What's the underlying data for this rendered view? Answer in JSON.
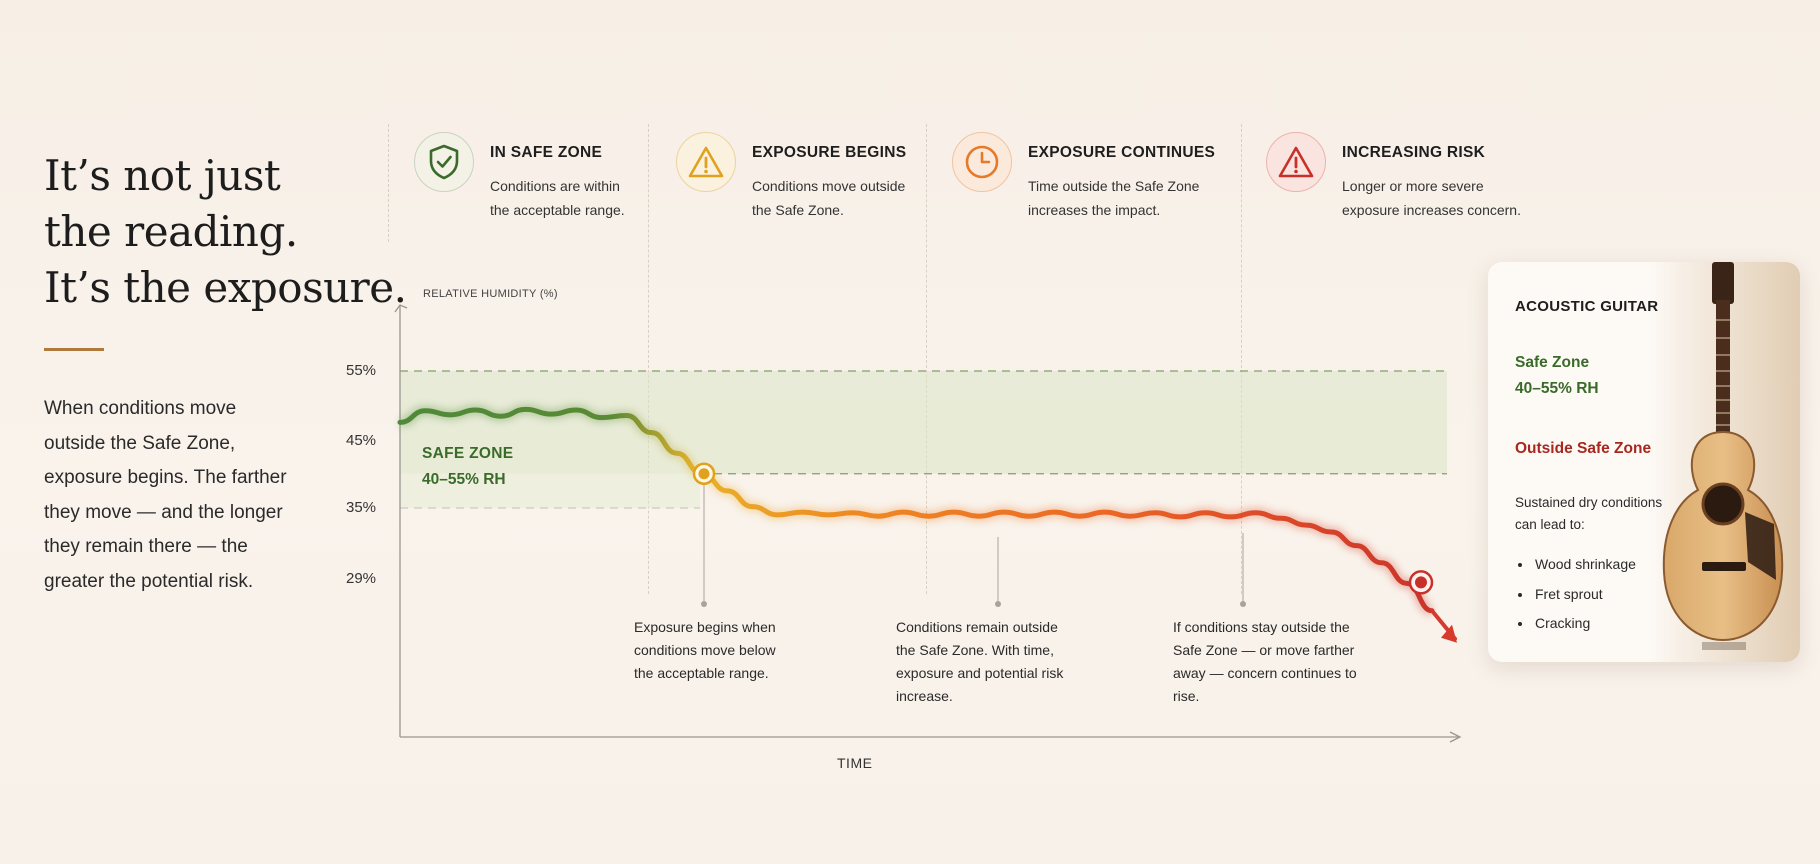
{
  "headline": [
    "It’s not just",
    "the reading.",
    "It’s the exposure."
  ],
  "intro": "When conditions move outside the Safe Zone, exposure begins. The farther they move — and the longer they remain there — the greater the potential risk.",
  "stages": [
    {
      "icon": "shield-check-icon",
      "title": "IN SAFE ZONE",
      "desc": "Conditions are within the acceptable range.",
      "color": "#3a6b2a"
    },
    {
      "icon": "warning-triangle-icon",
      "title": "EXPOSURE BEGINS",
      "desc": "Conditions move outside the Safe Zone.",
      "color": "#e0a21e"
    },
    {
      "icon": "clock-icon",
      "title": "EXPOSURE CONTINUES",
      "desc": "Time outside the Safe Zone increases the impact.",
      "color": "#e6792a"
    },
    {
      "icon": "alert-triangle-icon",
      "title": "INCREASING RISK",
      "desc": "Longer or more severe exposure increases concern.",
      "color": "#c8302a"
    }
  ],
  "chart_data": {
    "type": "line",
    "ylabel": "RELATIVE HUMIDITY (%)",
    "xlabel": "TIME",
    "y_ticks": [
      "55%",
      "45%",
      "35%",
      "29%"
    ],
    "safe_zone": {
      "label": "SAFE ZONE",
      "range_label": "40–55% RH",
      "min": 40,
      "max": 55
    },
    "series": [
      {
        "values_rh": [
          47.5,
          49.2,
          48.6,
          49.3,
          48.4,
          49.4,
          48.7,
          49.3,
          48.2,
          48.5,
          46.0,
          43.0,
          40.0,
          37.5,
          35.2,
          34.0,
          34.4,
          34.0,
          34.3,
          33.8,
          34.4,
          33.8,
          34.4,
          33.8,
          34.4,
          33.8,
          34.4,
          33.8,
          34.4,
          33.8,
          34.3,
          33.7,
          34.3,
          33.7,
          34.3,
          33.5,
          32.5,
          31.5,
          29.5,
          27.0,
          24.0,
          20.0
        ]
      }
    ],
    "markers": [
      {
        "label": "exposure-begins-point",
        "rh": 40.0
      },
      {
        "label": "increasing-risk-point",
        "rh": 24.0
      }
    ],
    "annotations": [
      "Exposure begins when conditions move below the acceptable range.",
      "Conditions remain outside the Safe Zone. With time, exposure and potential risk increase.",
      "If conditions stay outside the Safe Zone — or move farther away — concern continues to rise."
    ]
  },
  "card": {
    "title": "ACOUSTIC GUITAR",
    "safe_zone_label": "Safe Zone",
    "safe_zone_range": "40–55% RH",
    "outside_label": "Outside Safe Zone",
    "lead": "Sustained dry conditions can lead to:",
    "effects": [
      "Wood shrinkage",
      "Fret sprout",
      "Cracking"
    ]
  }
}
